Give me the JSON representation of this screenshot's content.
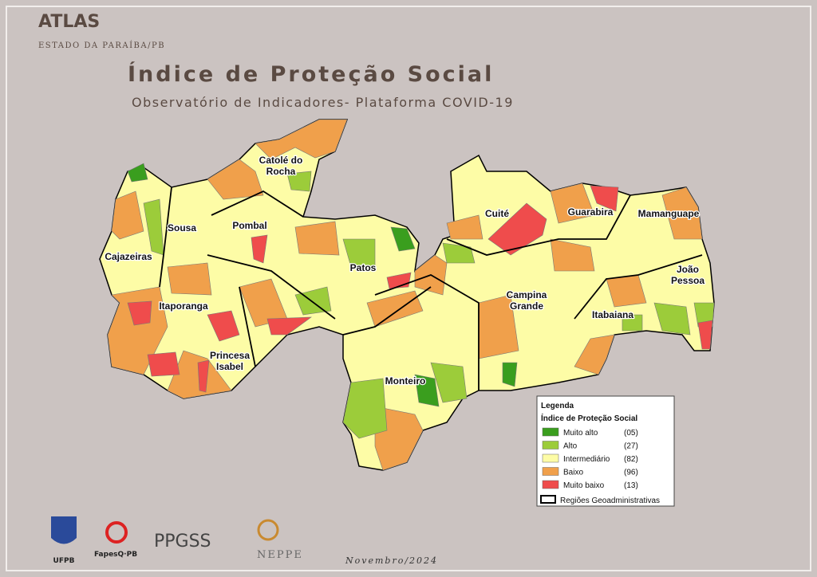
{
  "header": {
    "brand": "ATLAS",
    "subbrand": "ESTADO DA PARAÍBA/PB",
    "title": "Índice de Proteção Social",
    "subtitle": "Observatório de Indicadores- Plataforma COVID-19"
  },
  "regions": [
    {
      "lines": [
        "Catolé do",
        "Rocha"
      ]
    },
    {
      "lines": [
        "Sousa"
      ]
    },
    {
      "lines": [
        "Pombal"
      ]
    },
    {
      "lines": [
        "Cajazeiras"
      ]
    },
    {
      "lines": [
        "Itaporanga"
      ]
    },
    {
      "lines": [
        "Princesa",
        "Isabel"
      ]
    },
    {
      "lines": [
        "Patos"
      ]
    },
    {
      "lines": [
        "Monteiro"
      ]
    },
    {
      "lines": [
        "Cuité"
      ]
    },
    {
      "lines": [
        "Campina",
        "Grande"
      ]
    },
    {
      "lines": [
        "Guarabira"
      ]
    },
    {
      "lines": [
        "Mamanguape"
      ]
    },
    {
      "lines": [
        "João",
        "Pessoa"
      ]
    },
    {
      "lines": [
        "Itabaiana"
      ]
    }
  ],
  "legend": {
    "title": "Legenda",
    "subtitle": "Índice de Proteção Social",
    "items": [
      {
        "label": "Muito alto",
        "count": "(05)",
        "color": "#3a9e1e"
      },
      {
        "label": "Alto",
        "count": "(27)",
        "color": "#9ccc3a"
      },
      {
        "label": "Intermediário",
        "count": "(82)",
        "color": "#fdfca6"
      },
      {
        "label": "Baixo",
        "count": "(96)",
        "color": "#f0a04b"
      },
      {
        "label": "Muito baixo",
        "count": "(13)",
        "color": "#ef4c4c"
      }
    ],
    "boundary": "Regiões Geoadministrativas"
  },
  "logos": [
    "UFPB",
    "FapesQ·PB",
    "PPGSS",
    "NEPPE"
  ],
  "footer": "Novembro/2024"
}
